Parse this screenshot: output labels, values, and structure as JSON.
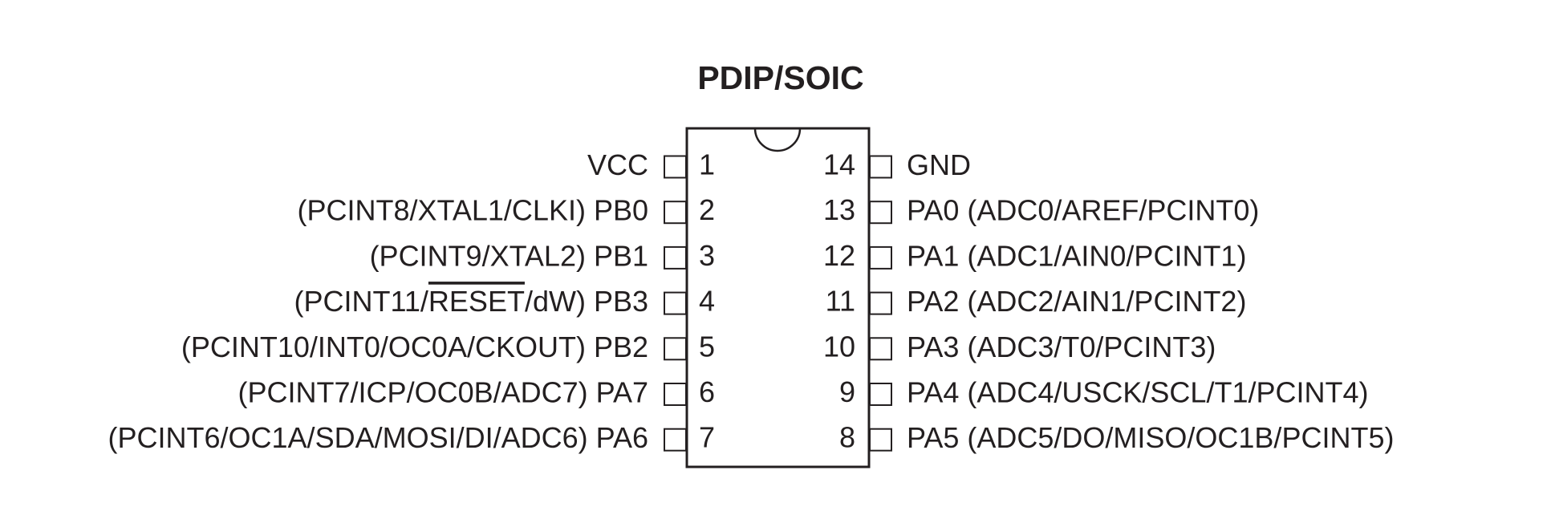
{
  "title": "PDIP/SOIC",
  "left_pins": [
    {
      "number": "1",
      "label": [
        {
          "text": "VCC"
        }
      ]
    },
    {
      "number": "2",
      "label": [
        {
          "text": "(PCINT8/XTAL1/CLKI) PB0"
        }
      ]
    },
    {
      "number": "3",
      "label": [
        {
          "text": "(PCINT9/XTAL2) PB1"
        }
      ]
    },
    {
      "number": "4",
      "label": [
        {
          "text": "(PCINT11/"
        },
        {
          "text": "RESET",
          "overline": true
        },
        {
          "text": "/dW) PB3"
        }
      ]
    },
    {
      "number": "5",
      "label": [
        {
          "text": "(PCINT10/INT0/OC0A/CKOUT) PB2"
        }
      ]
    },
    {
      "number": "6",
      "label": [
        {
          "text": "(PCINT7/ICP/OC0B/ADC7) PA7"
        }
      ]
    },
    {
      "number": "7",
      "label": [
        {
          "text": "(PCINT6/OC1A/SDA/MOSI/DI/ADC6) PA6"
        }
      ]
    }
  ],
  "right_pins": [
    {
      "number": "14",
      "label": [
        {
          "text": "GND"
        }
      ]
    },
    {
      "number": "13",
      "label": [
        {
          "text": "PA0 (ADC0/AREF/PCINT0)"
        }
      ]
    },
    {
      "number": "12",
      "label": [
        {
          "text": "PA1 (ADC1/AIN0/PCINT1)"
        }
      ]
    },
    {
      "number": "11",
      "label": [
        {
          "text": "PA2 (ADC2/AIN1/PCINT2)"
        }
      ]
    },
    {
      "number": "10",
      "label": [
        {
          "text": "PA3 (ADC3/T0/PCINT3)"
        }
      ]
    },
    {
      "number": "9",
      "label": [
        {
          "text": "PA4 (ADC4/USCK/SCL/T1/PCINT4)"
        }
      ]
    },
    {
      "number": "8",
      "label": [
        {
          "text": "PA5 (ADC5/DO/MISO/OC1B/PCINT5)"
        }
      ]
    }
  ]
}
